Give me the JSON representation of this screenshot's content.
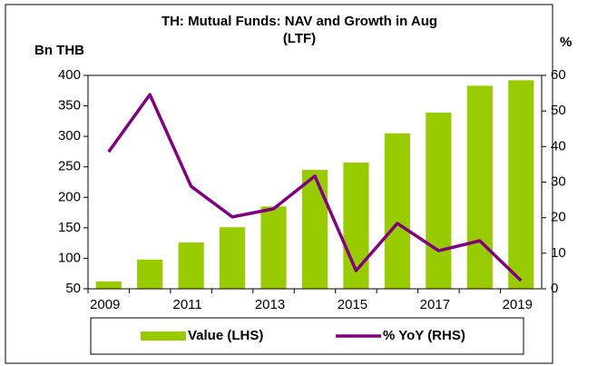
{
  "chart_data": {
    "type": "bar_line",
    "title": [
      "TH: Mutual Funds: NAV and Growth in Aug",
      "(LTF)"
    ],
    "y_label": "Bn THB",
    "y2_label": "%",
    "categories": [
      "2009",
      null,
      "2011",
      null,
      "2013",
      null,
      "2015",
      null,
      "2017",
      null,
      "2019"
    ],
    "series": [
      {
        "name": "Value (LHS)",
        "type": "bar",
        "color": "#99cc00",
        "values": [
          62,
          98,
          126,
          151,
          185,
          245,
          257,
          305,
          339,
          383,
          392
        ]
      },
      {
        "name": "% YoY (RHS)",
        "type": "line",
        "axis": "y2",
        "color": "#800080",
        "values": [
          38.5,
          54.6,
          28.8,
          20.2,
          22.5,
          31.7,
          5.1,
          18.4,
          10.7,
          13.5,
          2.3
        ]
      }
    ],
    "ylim": [
      50,
      400
    ],
    "yticks": [
      50,
      100,
      150,
      200,
      250,
      300,
      350,
      400
    ],
    "y2lim": [
      0,
      60
    ],
    "y2ticks": [
      0,
      10,
      20,
      30,
      40,
      50,
      60
    ],
    "legend": "bottom"
  }
}
